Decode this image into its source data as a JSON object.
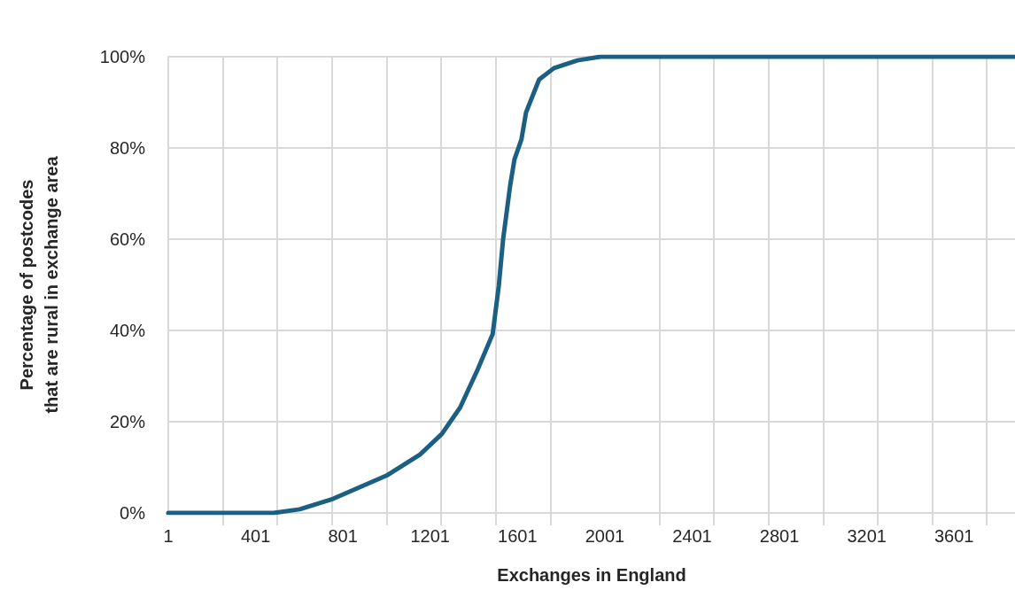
{
  "chart_data": {
    "type": "line",
    "xlabel": "Exchanges in England",
    "ylabel": "Percentage of postcodes\nthat are rural in exchange area",
    "series": [
      {
        "color": "#1b6083",
        "x": [
          1,
          483,
          603,
          756,
          1001,
          1154,
          1254,
          1338,
          1419,
          1487,
          1515,
          1535,
          1567,
          1587,
          1619,
          1640,
          1700,
          1768,
          1876,
          1981,
          3880
        ],
        "values": [
          0,
          0,
          0.8,
          3.1,
          8.2,
          12.8,
          17.3,
          23.1,
          31.5,
          39.2,
          49.7,
          60,
          71.7,
          77.5,
          81.9,
          87.8,
          95,
          97.5,
          99.2,
          100,
          100
        ]
      }
    ],
    "xlim": [
      1,
      3880
    ],
    "xticks": [
      1,
      {
        "value": 251,
        "label": null
      },
      401,
      {
        "value": 501,
        "label": null
      },
      {
        "value": 751,
        "label": null
      },
      801,
      {
        "value": 1001,
        "label": null
      },
      1201,
      {
        "value": 1251,
        "label": null
      },
      {
        "value": 1501,
        "label": null
      },
      1601,
      {
        "value": 1751,
        "label": null
      },
      2001,
      {
        "value": 2251,
        "label": null
      },
      2401,
      {
        "value": 2501,
        "label": null
      },
      {
        "value": 2751,
        "label": null
      },
      2801,
      {
        "value": 3001,
        "label": null
      },
      3201,
      {
        "value": 3251,
        "label": null
      },
      {
        "value": 3501,
        "label": null
      },
      3601,
      {
        "value": 3751,
        "label": null
      }
    ],
    "ylim": [
      0,
      100
    ],
    "yticks": [
      {
        "value": 0,
        "label": "0%"
      },
      {
        "value": 20,
        "label": "20%"
      },
      {
        "value": 40,
        "label": "40%"
      },
      {
        "value": 60,
        "label": "60%"
      },
      {
        "value": 80,
        "label": "80%"
      },
      {
        "value": 100,
        "label": "100%"
      }
    ],
    "grid": true,
    "marker": "none",
    "line_style": "solid"
  }
}
